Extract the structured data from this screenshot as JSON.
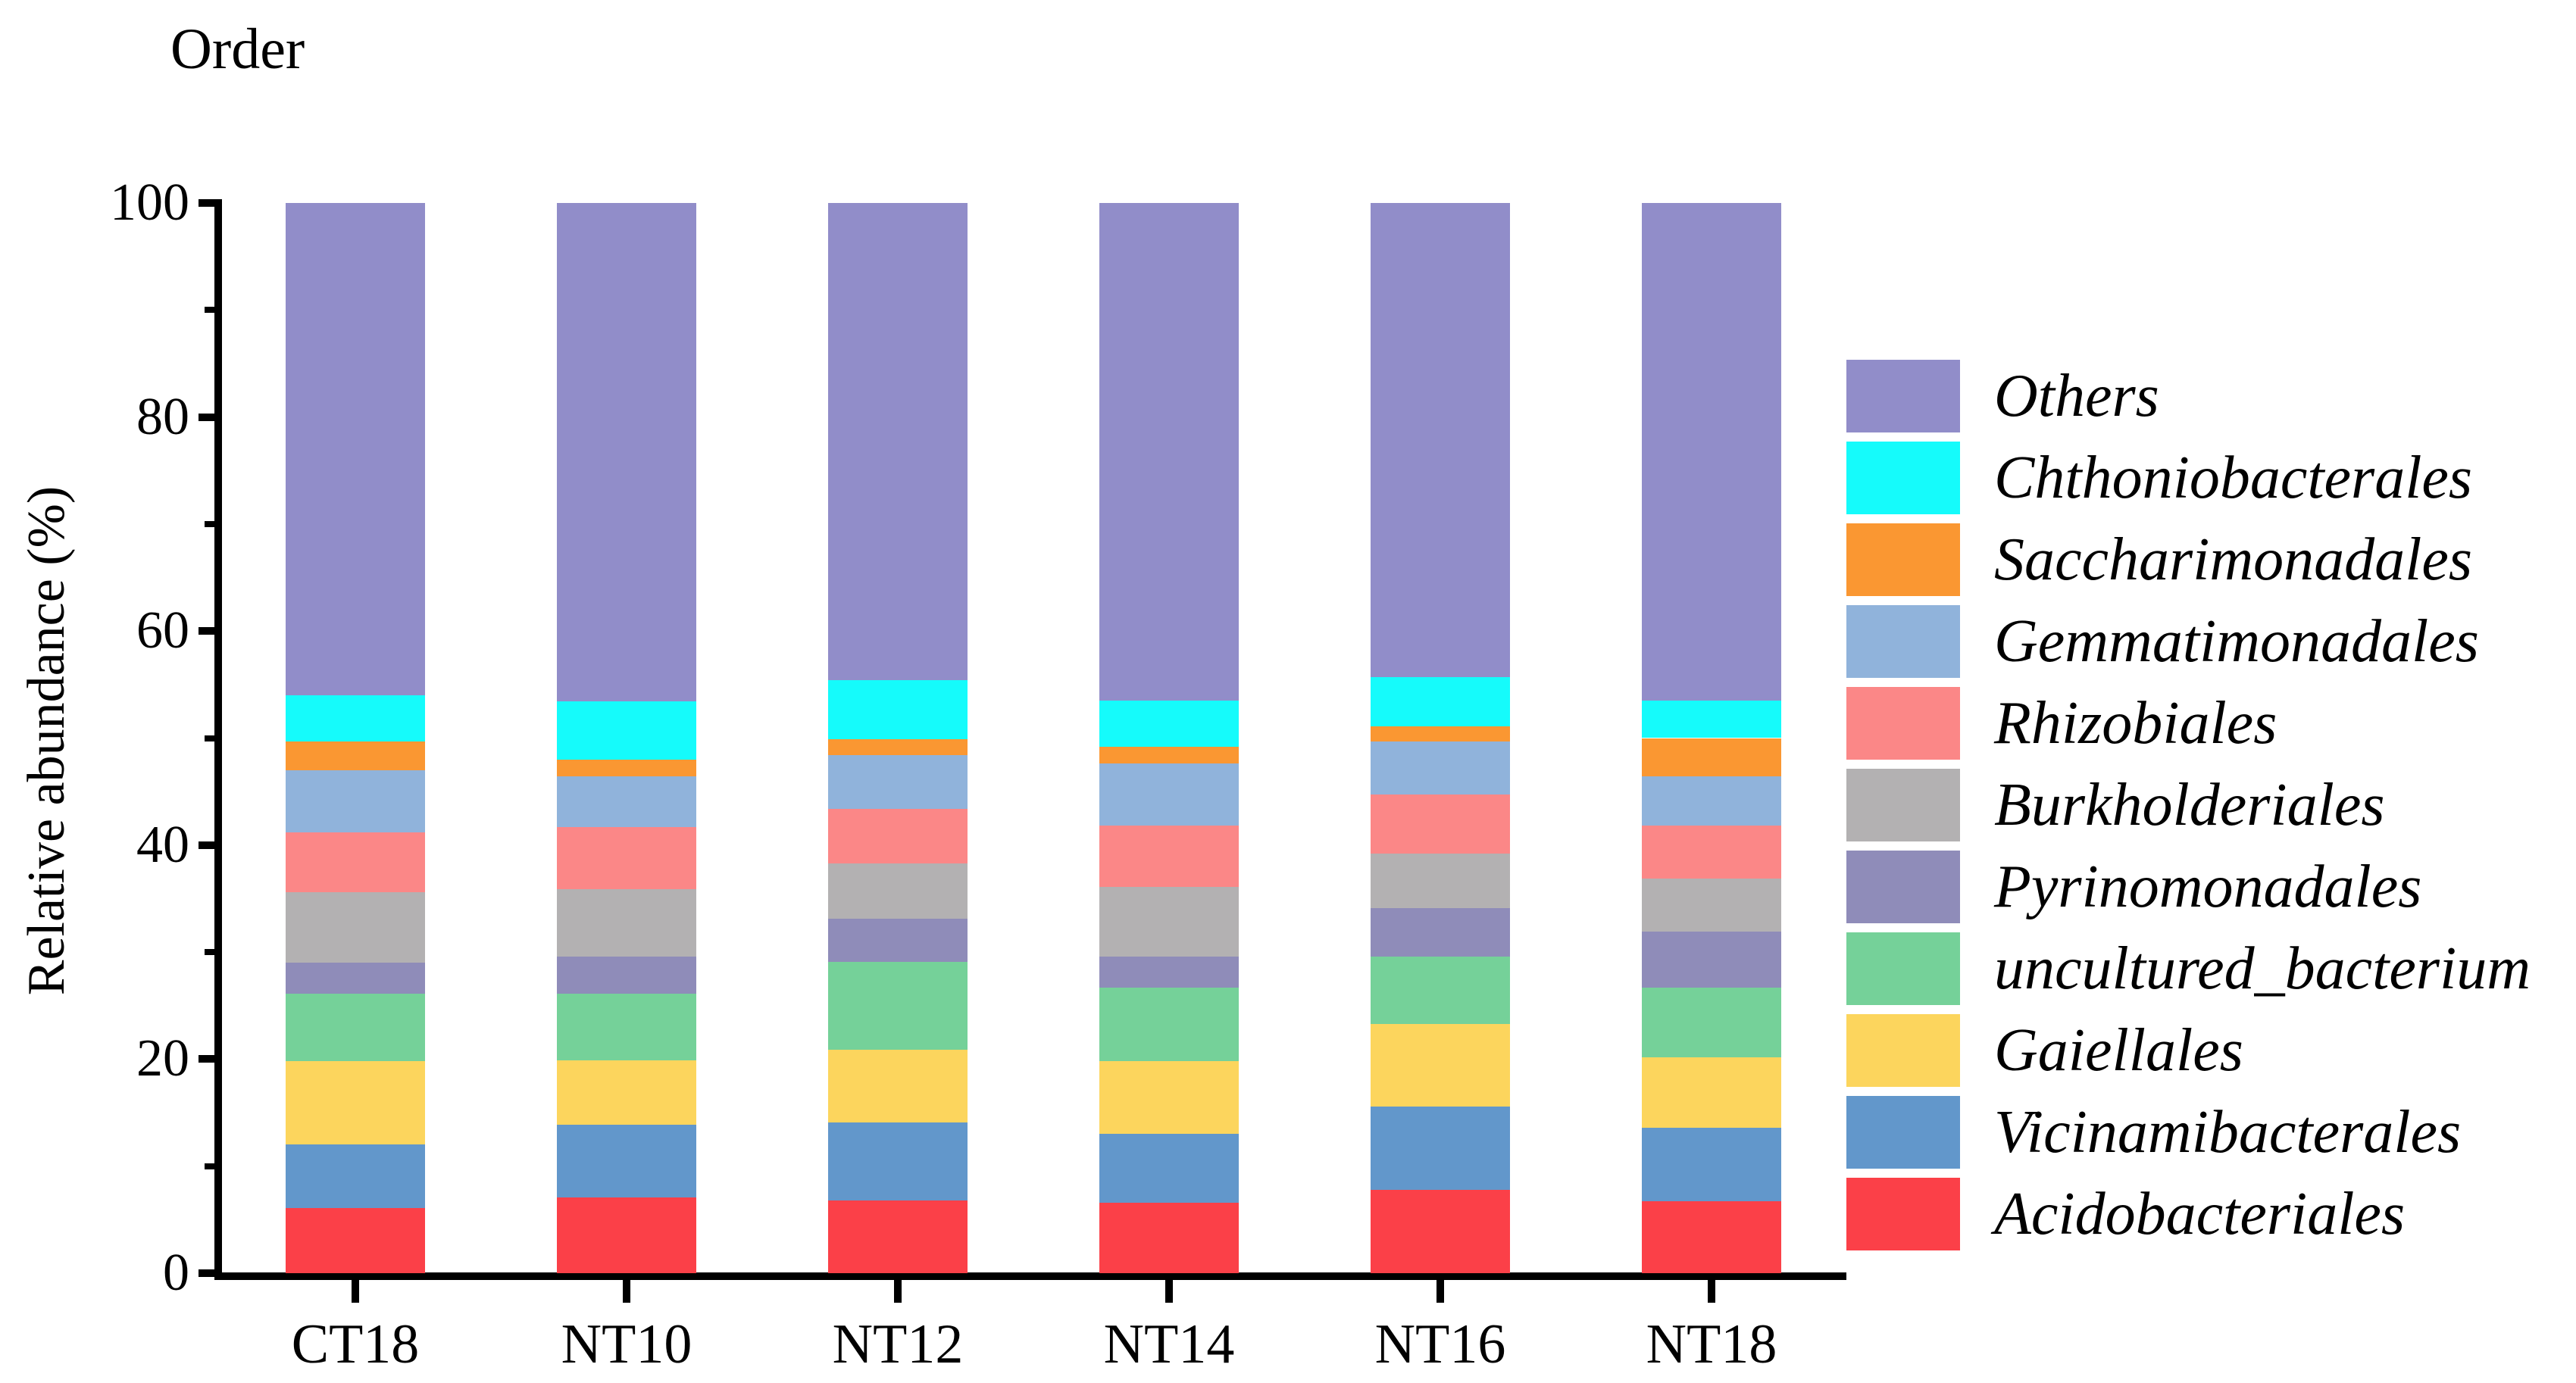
{
  "title": "Order",
  "axes": {
    "y_label": "Relative abundance (%)",
    "y_range": [
      0,
      100
    ],
    "y_ticks": [
      0,
      20,
      40,
      60,
      80,
      100
    ],
    "y_minor_ticks": [
      10,
      30,
      50,
      70,
      90
    ],
    "x_categories": [
      "CT18",
      "NT10",
      "NT12",
      "NT14",
      "NT16",
      "NT18"
    ]
  },
  "legend": {
    "position": "right",
    "entries_top_to_bottom": [
      "Others",
      "Chthoniobacterales",
      "Saccharimonadales",
      "Gemmatimonadales",
      "Rhizobiales",
      "Burkholderiales",
      "Pyrinomonadales",
      "uncultured_bacterium",
      "Gaiellales",
      "Vicinamibacterales",
      "Acidobacteriales"
    ]
  },
  "chart_data": {
    "type": "bar",
    "stacked": true,
    "title": "Order",
    "xlabel": "",
    "ylabel": "Relative abundance (%)",
    "ylim": [
      0,
      100
    ],
    "grid": false,
    "legend_position": "right",
    "categories": [
      "CT18",
      "NT10",
      "NT12",
      "NT14",
      "NT16",
      "NT18"
    ],
    "series_bottom_to_top": [
      {
        "name": "Acidobacteriales",
        "color": "#FB4048",
        "values": [
          6.1,
          7.1,
          6.8,
          6.6,
          7.8,
          6.7
        ]
      },
      {
        "name": "Vicinamibacterales",
        "color": "#6297CB",
        "values": [
          5.9,
          6.8,
          7.3,
          6.4,
          7.8,
          6.9
        ]
      },
      {
        "name": "Gaiellales",
        "color": "#FCD55D",
        "values": [
          7.8,
          6.0,
          6.8,
          6.8,
          7.7,
          6.6
        ]
      },
      {
        "name": "uncultured_bacterium",
        "color": "#75D199",
        "values": [
          6.3,
          6.2,
          8.2,
          6.9,
          6.3,
          6.5
        ]
      },
      {
        "name": "Pyrinomonadales",
        "color": "#8F8CB9",
        "values": [
          2.9,
          3.5,
          4.0,
          2.9,
          4.5,
          5.2
        ]
      },
      {
        "name": "Burkholderiales",
        "color": "#B3B1B2",
        "values": [
          6.6,
          6.3,
          5.2,
          6.5,
          5.1,
          5.0
        ]
      },
      {
        "name": "Rhizobiales",
        "color": "#FB8787",
        "values": [
          5.6,
          5.8,
          5.1,
          5.7,
          5.5,
          4.9
        ]
      },
      {
        "name": "Gemmatimonadales",
        "color": "#90B3DB",
        "values": [
          5.8,
          4.7,
          5.0,
          5.8,
          5.0,
          4.6
        ]
      },
      {
        "name": "Saccharimonadales",
        "color": "#FA9732",
        "values": [
          2.7,
          1.6,
          1.5,
          1.6,
          1.4,
          3.6
        ]
      },
      {
        "name": "Chthoniobacterales",
        "color": "#15FBFB",
        "values": [
          4.3,
          5.4,
          5.5,
          4.3,
          4.6,
          3.5
        ]
      },
      {
        "name": "Others",
        "color": "#918DC9",
        "values": [
          46.0,
          46.6,
          44.6,
          46.5,
          44.3,
          46.5
        ]
      }
    ]
  }
}
